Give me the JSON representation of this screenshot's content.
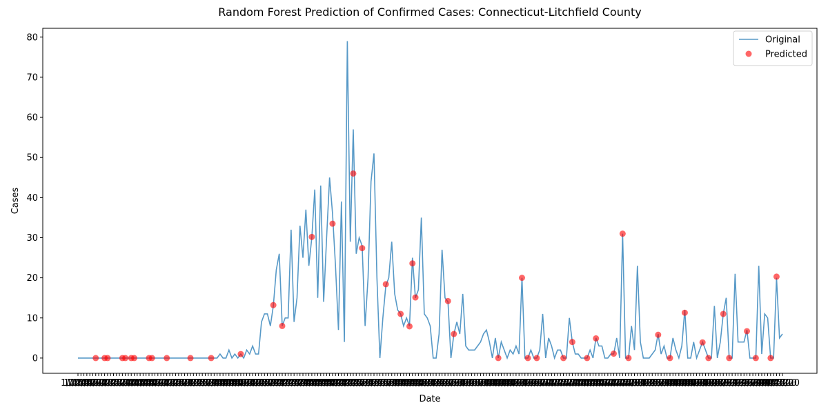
{
  "chart_data": {
    "type": "line",
    "title": "Random Forest Prediction of Confirmed Cases: Connecticut-Litchfield County",
    "x_label": "Date",
    "y_label": "Cases",
    "categories": [
      "1/22/20",
      "1/23/20",
      "1/24/20",
      "1/25/20",
      "1/26/20",
      "1/27/20",
      "1/28/20",
      "1/29/20",
      "1/30/20",
      "1/31/20",
      "2/1/20",
      "2/2/20",
      "2/3/20",
      "2/4/20",
      "2/5/20",
      "2/6/20",
      "2/7/20",
      "2/8/20",
      "2/9/20",
      "2/10/20",
      "2/11/20",
      "2/12/20",
      "2/13/20",
      "2/14/20",
      "2/15/20",
      "2/16/20",
      "2/17/20",
      "2/18/20",
      "2/19/20",
      "2/20/20",
      "2/21/20",
      "2/22/20",
      "2/23/20",
      "2/24/20",
      "2/25/20",
      "2/26/20",
      "2/27/20",
      "2/28/20",
      "2/29/20",
      "3/1/20",
      "3/2/20",
      "3/3/20",
      "3/4/20",
      "3/5/20",
      "3/6/20",
      "3/7/20",
      "3/8/20",
      "3/9/20",
      "3/10/20",
      "3/11/20",
      "3/12/20",
      "3/13/20",
      "3/14/20",
      "3/15/20",
      "3/16/20",
      "3/17/20",
      "3/18/20",
      "3/19/20",
      "3/20/20",
      "3/21/20",
      "3/22/20",
      "3/23/20",
      "3/24/20",
      "3/25/20",
      "3/26/20",
      "3/27/20",
      "3/28/20",
      "3/29/20",
      "3/30/20",
      "3/31/20",
      "4/1/20",
      "4/2/20",
      "4/3/20",
      "4/4/20",
      "4/5/20",
      "4/6/20",
      "4/7/20",
      "4/8/20",
      "4/9/20",
      "4/10/20",
      "4/11/20",
      "4/12/20",
      "4/13/20",
      "4/14/20",
      "4/15/20",
      "4/16/20",
      "4/17/20",
      "4/18/20",
      "4/19/20",
      "4/20/20",
      "4/21/20",
      "4/22/20",
      "4/23/20",
      "4/24/20",
      "4/25/20",
      "4/26/20",
      "4/27/20",
      "4/28/20",
      "4/29/20",
      "4/30/20",
      "5/1/20",
      "5/2/20",
      "5/3/20",
      "5/4/20",
      "5/5/20",
      "5/6/20",
      "5/7/20",
      "5/8/20",
      "5/9/20",
      "5/10/20",
      "5/11/20",
      "5/12/20",
      "5/13/20",
      "5/14/20",
      "5/15/20",
      "5/16/20",
      "5/17/20",
      "5/18/20",
      "5/19/20",
      "5/20/20",
      "5/21/20",
      "5/22/20",
      "5/23/20",
      "5/24/20",
      "5/25/20",
      "5/26/20",
      "5/27/20",
      "5/28/20",
      "5/29/20",
      "5/30/20",
      "5/31/20",
      "6/1/20",
      "6/2/20",
      "6/3/20",
      "6/4/20",
      "6/5/20",
      "6/6/20",
      "6/7/20",
      "6/8/20",
      "6/9/20",
      "6/10/20",
      "6/11/20",
      "6/12/20",
      "6/13/20",
      "6/14/20",
      "6/15/20",
      "6/16/20",
      "6/17/20",
      "6/18/20",
      "6/19/20",
      "6/20/20",
      "6/21/20",
      "6/22/20",
      "6/23/20",
      "6/24/20",
      "6/25/20",
      "6/26/20",
      "6/27/20",
      "6/28/20",
      "6/29/20",
      "6/30/20",
      "7/1/20",
      "7/2/20",
      "7/3/20",
      "7/4/20",
      "7/5/20",
      "7/6/20",
      "7/7/20",
      "7/8/20",
      "7/9/20",
      "7/10/20",
      "7/11/20",
      "7/12/20",
      "7/13/20",
      "7/14/20",
      "7/15/20",
      "7/16/20",
      "7/17/20",
      "7/18/20",
      "7/19/20",
      "7/20/20",
      "7/21/20",
      "7/22/20",
      "7/23/20",
      "7/24/20",
      "7/25/20",
      "7/26/20",
      "7/27/20",
      "7/28/20",
      "7/29/20",
      "7/30/20",
      "7/31/20",
      "8/1/20",
      "8/2/20",
      "8/3/20",
      "8/4/20",
      "8/5/20",
      "8/6/20",
      "8/7/20",
      "8/8/20",
      "8/9/20",
      "8/10/20",
      "8/11/20",
      "8/12/20",
      "8/13/20",
      "8/14/20",
      "8/15/20",
      "8/16/20",
      "8/17/20",
      "8/18/20",
      "8/19/20",
      "8/20/20",
      "8/21/20",
      "8/22/20",
      "8/23/20",
      "8/24/20",
      "8/25/20",
      "8/26/20",
      "8/27/20",
      "8/28/20",
      "8/29/20",
      "8/30/20",
      "8/31/20",
      "9/1/20",
      "9/2/20",
      "9/3/20",
      "9/4/20",
      "9/5/20",
      "9/6/20",
      "9/7/20",
      "9/8/20",
      "9/9/20",
      "9/10/20",
      "9/11/20",
      "9/12/20",
      "9/13/20",
      "9/14/20",
      "9/15/20",
      "9/16/20"
    ],
    "series": [
      {
        "name": "Original",
        "color": "#1f77b4",
        "values": [
          0,
          0,
          0,
          0,
          0,
          0,
          0,
          0,
          0,
          0,
          0,
          0,
          0,
          0,
          0,
          0,
          0,
          0,
          0,
          0,
          0,
          0,
          0,
          0,
          0,
          0,
          0,
          0,
          0,
          0,
          0,
          0,
          0,
          0,
          0,
          0,
          0,
          0,
          0,
          0,
          0,
          0,
          0,
          0,
          0,
          0,
          0,
          0,
          1,
          0,
          0,
          2,
          0,
          1,
          0,
          1,
          0,
          2,
          1,
          3,
          1,
          1,
          9,
          11,
          11,
          8,
          13,
          22,
          26,
          8,
          10,
          10,
          32,
          9,
          15,
          33,
          25,
          37,
          23,
          30,
          42,
          15,
          43,
          14,
          30,
          45,
          36,
          23,
          7,
          39,
          4,
          79,
          29,
          57,
          26,
          30,
          28,
          8,
          20,
          44,
          51,
          20,
          0,
          10,
          18,
          20,
          29,
          16,
          12,
          11,
          8,
          10,
          8,
          25,
          15,
          17,
          35,
          11,
          10,
          8,
          0,
          0,
          6,
          27,
          15,
          14,
          0,
          6,
          9,
          6,
          16,
          3,
          2,
          2,
          2,
          3,
          4,
          6,
          7,
          4,
          0,
          5,
          0,
          4,
          2,
          0,
          2,
          1,
          3,
          1,
          20,
          0,
          0,
          2,
          0,
          0,
          2,
          11,
          0,
          5,
          3,
          0,
          2,
          2,
          0,
          0,
          10,
          4,
          1,
          1,
          0,
          0,
          0,
          2,
          0,
          5,
          3,
          3,
          0,
          0,
          1,
          1,
          5,
          0,
          31,
          0,
          0,
          8,
          2,
          23,
          4,
          0,
          0,
          0,
          1,
          2,
          6,
          1,
          3,
          0,
          0,
          5,
          2,
          0,
          3,
          12,
          0,
          0,
          4,
          0,
          2,
          4,
          2,
          0,
          0,
          13,
          0,
          4,
          11,
          15,
          0,
          0,
          21,
          4,
          4,
          4,
          7,
          0,
          0,
          0,
          23,
          1,
          11,
          10,
          0,
          0,
          20,
          5,
          6
        ]
      },
      {
        "name": "Predicted",
        "color": "#ff0000",
        "type": "scatter",
        "x": [
          "1/28/20",
          "1/31/20",
          "2/1/20",
          "2/6/20",
          "2/7/20",
          "2/9/20",
          "2/10/20",
          "2/15/20",
          "2/16/20",
          "2/21/20",
          "2/29/20",
          "3/7/20",
          "3/17/20",
          "3/28/20",
          "3/31/20",
          "4/10/20",
          "4/17/20",
          "4/24/20",
          "4/27/20",
          "5/5/20",
          "5/10/20",
          "5/13/20",
          "5/14/20",
          "5/15/20",
          "5/26/20",
          "5/28/20",
          "6/12/20",
          "6/20/20",
          "6/22/20",
          "6/25/20",
          "7/4/20",
          "7/7/20",
          "7/12/20",
          "7/15/20",
          "7/21/20",
          "7/24/20",
          "7/26/20",
          "8/5/20",
          "8/9/20",
          "8/14/20",
          "8/20/20",
          "8/22/20",
          "8/27/20",
          "8/29/20",
          "9/4/20",
          "9/7/20",
          "9/12/20",
          "9/14/20"
        ],
        "values": [
          0,
          0,
          0,
          0,
          0,
          0,
          0,
          0,
          0,
          0,
          0,
          0,
          1,
          13.2,
          8,
          30.2,
          33.5,
          46,
          27.4,
          18.4,
          11,
          7.9,
          23.6,
          15.1,
          14.2,
          6,
          0,
          20,
          0,
          0,
          0,
          4,
          0,
          4.9,
          1.1,
          31,
          0,
          5.8,
          0,
          11.3,
          3.9,
          0,
          11,
          0,
          6.7,
          0,
          0,
          20.3
        ]
      }
    ],
    "ylim": [
      -3.8,
      82.2
    ],
    "yticks": [
      0,
      10,
      20,
      30,
      40,
      50,
      60,
      70,
      80
    ],
    "legend": "upper right"
  }
}
